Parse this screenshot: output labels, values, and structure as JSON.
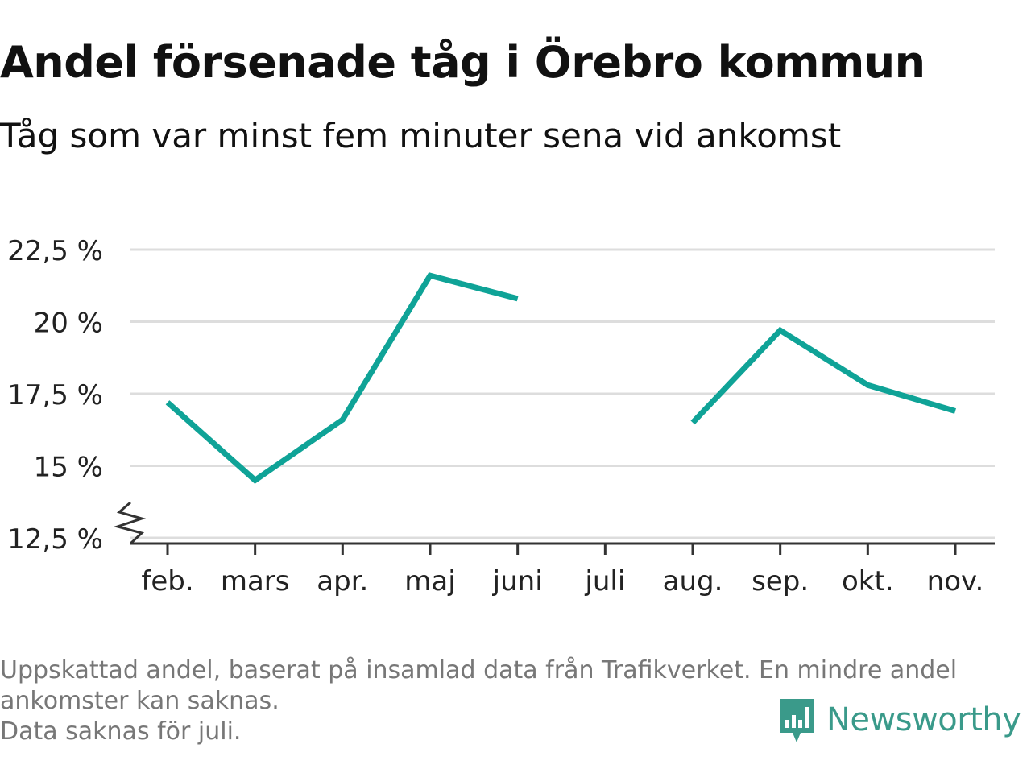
{
  "title": "Andel försenade tåg i Örebro kommun",
  "subtitle": "Tåg som var minst fem minuter sena vid ankomst",
  "footnote": {
    "line1": "Uppskattad andel, baserat på insamlad data från Trafikverket. En mindre andel",
    "line2": "ankomster kan saknas.",
    "line3": "Data saknas för juli."
  },
  "logo": {
    "text": "Newsworthy",
    "icon": "newsworthy-logo-icon",
    "color": "#3a9a8a"
  },
  "colors": {
    "line": "#0fa397",
    "grid": "#dddddd",
    "axis": "#333333"
  },
  "chart_data": {
    "type": "line",
    "title": "Andel försenade tåg i Örebro kommun",
    "subtitle": "Tåg som var minst fem minuter sena vid ankomst",
    "categories": [
      "feb.",
      "mars",
      "apr.",
      "maj",
      "juni",
      "juli",
      "aug.",
      "sep.",
      "okt.",
      "nov."
    ],
    "values": [
      17.2,
      14.5,
      16.6,
      21.6,
      20.8,
      null,
      16.5,
      19.7,
      17.8,
      16.9
    ],
    "yticks": [
      12.5,
      15,
      17.5,
      20,
      22.5
    ],
    "ytick_labels": [
      "12,5 %",
      "15 %",
      "17,5 %",
      "20 %",
      "22,5 %"
    ],
    "ylim": [
      12.5,
      22.5
    ],
    "y_axis_break": true,
    "grid": true,
    "legend": false
  }
}
